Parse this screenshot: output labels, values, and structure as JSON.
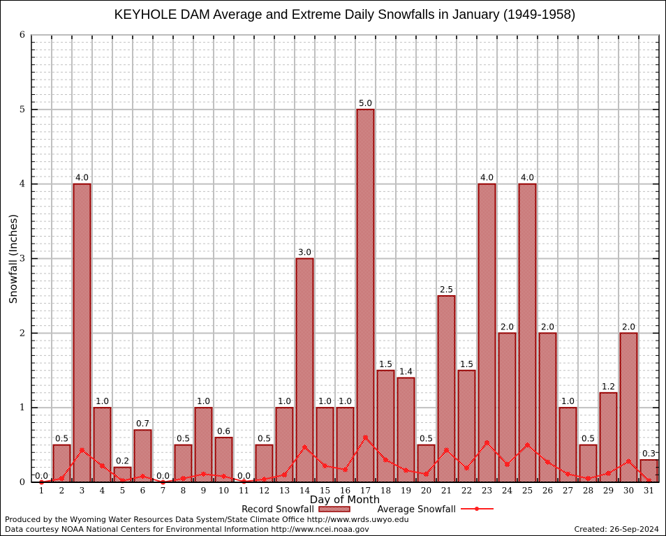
{
  "chart_data": {
    "type": "bar",
    "title": "KEYHOLE DAM Average and Extreme Daily Snowfalls in January (1949-1958)",
    "xlabel": "Day of Month",
    "ylabel": "Snowfall (Inches)",
    "ylim": [
      0,
      6
    ],
    "yticks": [
      "0",
      "1",
      "2",
      "3",
      "4",
      "5",
      "6"
    ],
    "grid": true,
    "categories": [
      "1",
      "2",
      "3",
      "4",
      "5",
      "6",
      "7",
      "8",
      "9",
      "10",
      "11",
      "12",
      "13",
      "14",
      "15",
      "16",
      "17",
      "18",
      "19",
      "20",
      "21",
      "22",
      "23",
      "24",
      "25",
      "26",
      "27",
      "28",
      "29",
      "30",
      "31"
    ],
    "series": [
      {
        "name": "Record Snowfall",
        "kind": "bar",
        "color": "#990000",
        "values": [
          0.0,
          0.5,
          4.0,
          1.0,
          0.2,
          0.7,
          0.0,
          0.5,
          1.0,
          0.6,
          0.0,
          0.5,
          1.0,
          3.0,
          1.0,
          1.0,
          5.0,
          1.5,
          1.4,
          0.5,
          2.5,
          1.5,
          4.0,
          2.0,
          4.0,
          2.0,
          1.0,
          0.5,
          1.2,
          2.0,
          0.3
        ],
        "labels": [
          "0.0",
          "0.5",
          "4.0",
          "1.0",
          "0.2",
          "0.7",
          "0.0",
          "0.5",
          "1.0",
          "0.6",
          "0.0",
          "0.5",
          "1.0",
          "3.0",
          "1.0",
          "1.0",
          "5.0",
          "1.5",
          "1.4",
          "0.5",
          "2.5",
          "1.5",
          "4.0",
          "2.0",
          "4.0",
          "2.0",
          "1.0",
          "0.5",
          "1.2",
          "2.0",
          "0.3"
        ]
      },
      {
        "name": "Average Snowfall",
        "kind": "line",
        "color": "#ff2020",
        "values": [
          0.0,
          0.05,
          0.43,
          0.22,
          0.02,
          0.08,
          0.0,
          0.05,
          0.11,
          0.08,
          0.01,
          0.04,
          0.1,
          0.47,
          0.22,
          0.17,
          0.6,
          0.3,
          0.16,
          0.11,
          0.43,
          0.19,
          0.53,
          0.24,
          0.5,
          0.27,
          0.11,
          0.05,
          0.12,
          0.28,
          0.02
        ]
      }
    ],
    "legend": {
      "placement": "bottom-center",
      "entries": [
        "Record Snowfall",
        "Average Snowfall"
      ]
    }
  },
  "footer": {
    "line1": "Produced by the Wyoming Water Resources Data System/State Climate Office http://www.wrds.uwyo.edu",
    "line2": "Data courtesy NOAA National Centers for Environmental Information http://www.ncei.noaa.gov",
    "created": "Created: 26-Sep-2024"
  }
}
